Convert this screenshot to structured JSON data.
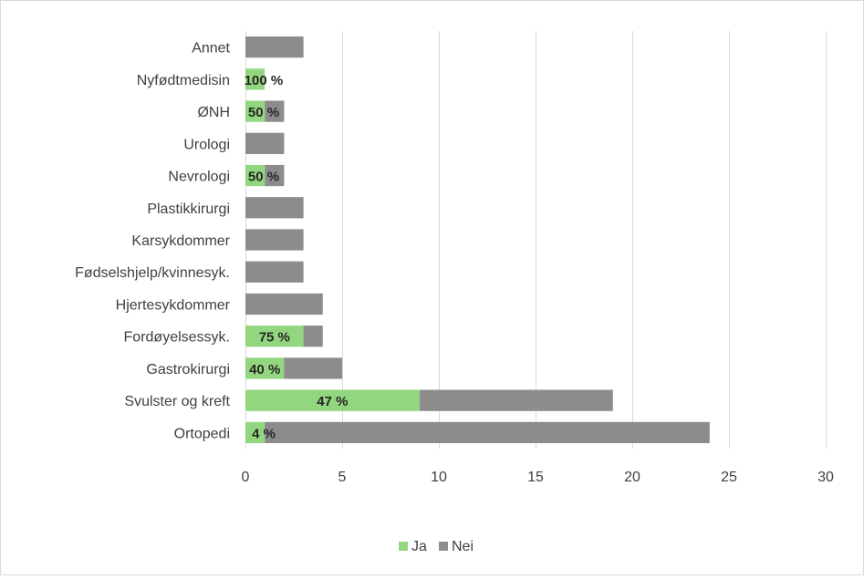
{
  "chart_data": {
    "type": "bar",
    "orientation": "horizontal",
    "stacked": true,
    "categories": [
      "Annet",
      "Nyfødtmedisin",
      "ØNH",
      "Urologi",
      "Nevrologi",
      "Plastikkirurgi",
      "Karsykdommer",
      "Fødselshjelp/kvinnesyk.",
      "Hjertesykdommer",
      "Fordøyelsessyk.",
      "Gastrokirurgi",
      "Svulster og kreft",
      "Ortopedi"
    ],
    "series": [
      {
        "name": "Ja",
        "color": "#92d67f",
        "values": [
          0,
          1,
          1,
          0,
          1,
          0,
          0,
          0,
          0,
          3,
          2,
          9,
          1
        ]
      },
      {
        "name": "Nei",
        "color": "#8c8c8c",
        "values": [
          3,
          0,
          1,
          2,
          1,
          3,
          3,
          3,
          4,
          1,
          3,
          10,
          23
        ]
      }
    ],
    "data_labels": [
      "",
      "100 %",
      "50 %",
      "",
      "50 %",
      "",
      "",
      "",
      "",
      "75 %",
      "40 %",
      "47 %",
      "4 %"
    ],
    "xlim": [
      0,
      30
    ],
    "xticks": [
      0,
      5,
      10,
      15,
      20,
      25,
      30
    ],
    "grid": "vertical",
    "legend": "bottom",
    "title": "",
    "xlabel": "",
    "ylabel": ""
  }
}
